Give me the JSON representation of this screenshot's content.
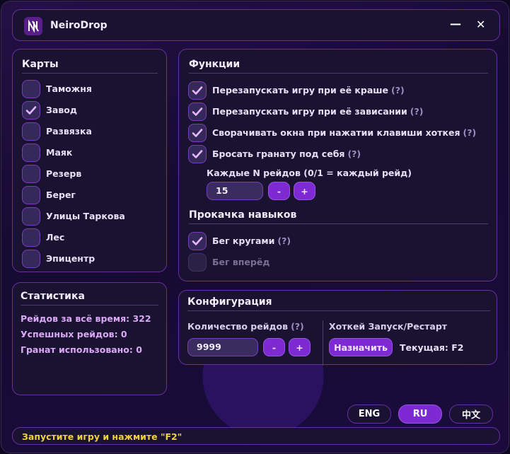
{
  "app": {
    "title": "NeiroDrop",
    "minimize": "—",
    "close": "✕"
  },
  "maps": {
    "title": "Карты",
    "items": [
      {
        "label": "Таможня",
        "checked": false
      },
      {
        "label": "Завод",
        "checked": true
      },
      {
        "label": "Развязка",
        "checked": false
      },
      {
        "label": "Маяк",
        "checked": false
      },
      {
        "label": "Резерв",
        "checked": false
      },
      {
        "label": "Берег",
        "checked": false
      },
      {
        "label": "Улицы Таркова",
        "checked": false
      },
      {
        "label": "Лес",
        "checked": false
      },
      {
        "label": "Эпицентр",
        "checked": false
      }
    ]
  },
  "stats": {
    "title": "Статистика",
    "total": "Рейдов за всё время: 322",
    "success": "Успешных рейдов: 0",
    "grenades": "Гранат использовано: 0"
  },
  "functions": {
    "title": "Функции",
    "items": [
      {
        "label": "Перезапускать игру при её краше",
        "help": "(?)",
        "checked": true
      },
      {
        "label": "Перезапускать игру при её зависании",
        "help": "(?)",
        "checked": true
      },
      {
        "label": "Сворачивать окна при нажатии клавиши хоткея",
        "help": "(?)",
        "checked": true
      },
      {
        "label": "Бросать гранату под себя",
        "help": "(?)",
        "checked": true
      }
    ],
    "every_n_label": "Каждые N рейдов (0/1 = каждый рейд)",
    "every_n_value": "15",
    "minus": "-",
    "plus": "+"
  },
  "skills": {
    "title": "Прокачка навыков",
    "items": [
      {
        "label": "Бег кругами",
        "help": "(?)",
        "checked": true
      },
      {
        "label": "Бег вперёд",
        "checked": false,
        "disabled": true
      }
    ]
  },
  "config": {
    "title": "Конфигурация",
    "raids_label": "Количество рейдов",
    "raids_help": "(?)",
    "raids_value": "9999",
    "minus": "-",
    "plus": "+",
    "hotkey_label": "Хоткей Запуск/Рестарт",
    "assign": "Назначить",
    "current": "Текущая: F2"
  },
  "languages": [
    {
      "label": "ENG",
      "active": false
    },
    {
      "label": "RU",
      "active": true
    },
    {
      "label": "中文",
      "active": false
    }
  ],
  "status": "Запустите игру и нажмите \"F2\"",
  "colors": {
    "accent": "#7e2ad2",
    "border": "#6a2d9e",
    "status": "#f0d040",
    "stats": "#dba8f5"
  }
}
